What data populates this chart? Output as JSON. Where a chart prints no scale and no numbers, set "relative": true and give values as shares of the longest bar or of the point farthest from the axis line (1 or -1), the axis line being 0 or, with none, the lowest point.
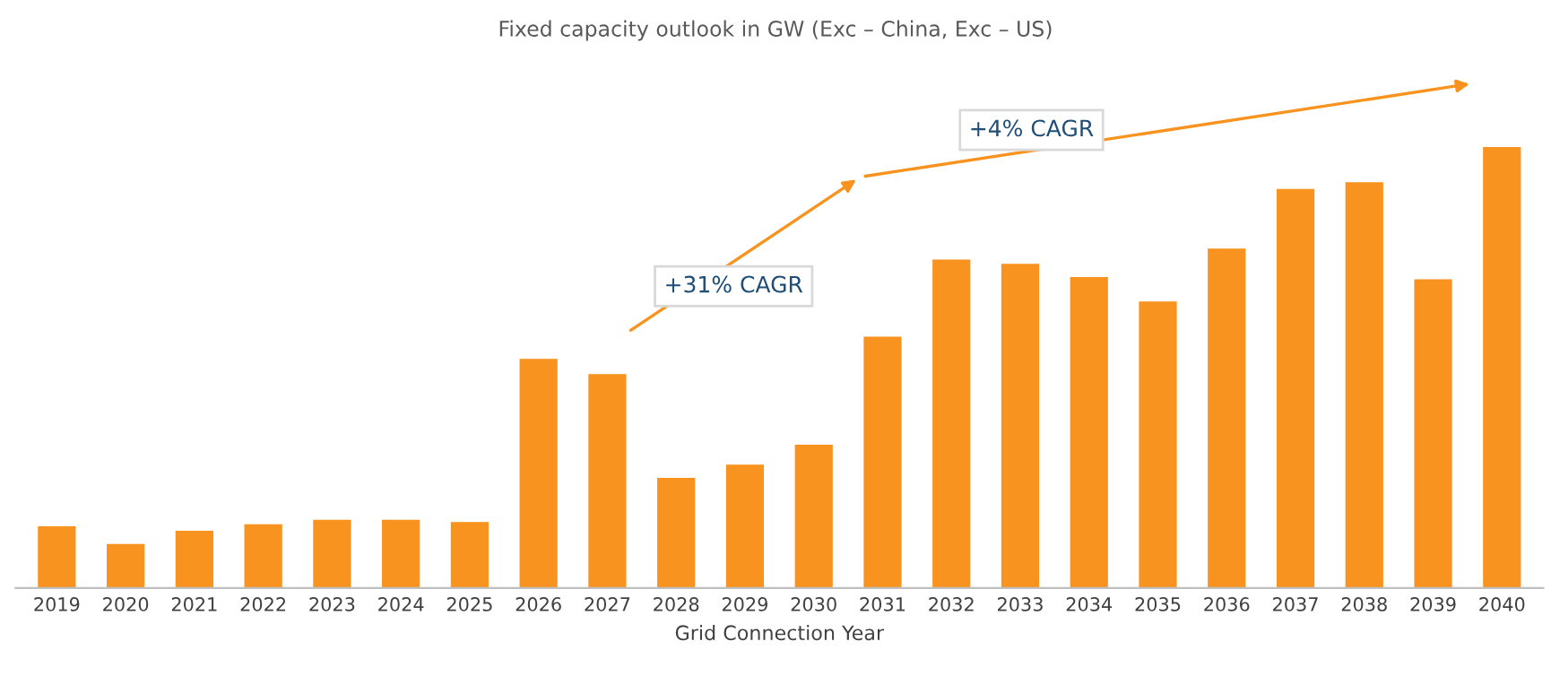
{
  "chart_data": {
    "type": "bar",
    "title": "Fixed capacity outlook in GW (Exc – China, Exc – US)",
    "xlabel": "Grid Connection Year",
    "relative": true,
    "categories": [
      "2019",
      "2020",
      "2021",
      "2022",
      "2023",
      "2024",
      "2025",
      "2026",
      "2027",
      "2028",
      "2029",
      "2030",
      "2031",
      "2032",
      "2033",
      "2034",
      "2035",
      "2036",
      "2037",
      "2038",
      "2039",
      "2040"
    ],
    "values": [
      0.14,
      0.1,
      0.13,
      0.145,
      0.155,
      0.155,
      0.15,
      0.52,
      0.485,
      0.25,
      0.28,
      0.325,
      0.57,
      0.745,
      0.735,
      0.705,
      0.65,
      0.77,
      0.905,
      0.92,
      0.7,
      1
    ],
    "color": "#f7931e",
    "grid": false,
    "legend": false,
    "annotations": [
      "+31% CAGR",
      "+4% CAGR"
    ]
  }
}
